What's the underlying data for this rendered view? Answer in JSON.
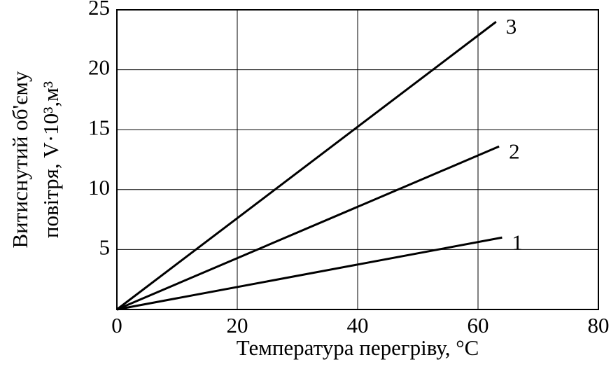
{
  "chart_data": {
    "type": "line",
    "x_label": "Температура перегріву, °C",
    "y_label": [
      "Витиснутий об'єму",
      "повітря, V·10³,м³"
    ],
    "series": [
      {
        "name": "1",
        "color": "#000000",
        "x": [
          0,
          64
        ],
        "values": [
          0,
          6
        ]
      },
      {
        "name": "2",
        "color": "#000000",
        "x": [
          0,
          63.5
        ],
        "values": [
          0,
          13.6
        ]
      },
      {
        "name": "3",
        "color": "#000000",
        "x": [
          0,
          63
        ],
        "values": [
          0,
          24
        ]
      }
    ],
    "xlim": [
      0,
      80
    ],
    "xticks": [
      0,
      20,
      40,
      60,
      80
    ],
    "ylim": [
      0,
      25
    ],
    "yticks": [
      5,
      10,
      15,
      20,
      25
    ],
    "grid": true
  }
}
